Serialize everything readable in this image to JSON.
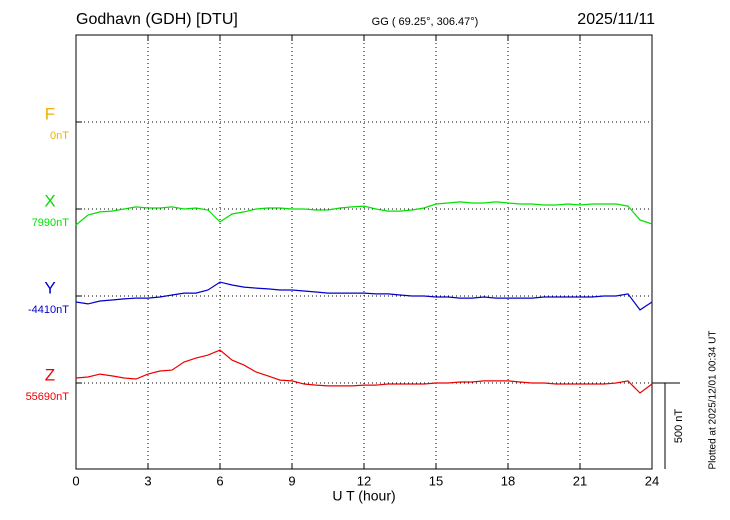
{
  "chart_data": {
    "type": "line",
    "title": "Godhavn (GDH)  [DTU]",
    "subtitle": "GG ( 69.25°, 306.47°)",
    "date": "2025/11/11",
    "x_label": "U T (hour)",
    "side_note": "Plotted at 2025/12/01 00:34 UT",
    "scale": {
      "value": 500,
      "label": "500 nT"
    },
    "xlim": [
      0,
      24
    ],
    "xticks": [
      0,
      3,
      6,
      9,
      12,
      15,
      18,
      21,
      24
    ],
    "grid": true,
    "x": [
      0,
      0.5,
      1,
      1.5,
      2,
      2.5,
      3,
      3.5,
      4,
      4.5,
      5,
      5.5,
      6,
      6.5,
      7,
      7.5,
      8,
      8.5,
      9,
      9.5,
      10,
      10.5,
      11,
      11.5,
      12,
      12.5,
      13,
      13.5,
      14,
      14.5,
      15,
      15.5,
      16,
      16.5,
      17,
      17.5,
      18,
      18.5,
      19,
      19.5,
      20,
      20.5,
      21,
      21.5,
      22,
      22.5,
      23,
      23.5,
      24
    ],
    "series": [
      {
        "name": "F",
        "color": "#f0b000",
        "baseline": {
          "value": 0,
          "label": "0nT"
        },
        "values": [
          null,
          null,
          null,
          null,
          null,
          null,
          null,
          null,
          null,
          null,
          null,
          null,
          null,
          null,
          null,
          null,
          null,
          null,
          null,
          null,
          null,
          null,
          null,
          null,
          null,
          null,
          null,
          null,
          null,
          null,
          null,
          null,
          null,
          null,
          null,
          null,
          null,
          null,
          null,
          null,
          null,
          null,
          null,
          null,
          null,
          null,
          null,
          null,
          null
        ]
      },
      {
        "name": "X",
        "color": "#00e000",
        "baseline": {
          "value": 7990,
          "label": "7990nT"
        },
        "values": [
          7897,
          7955,
          7973,
          7978,
          7990,
          8002,
          7996,
          7996,
          8002,
          7990,
          7996,
          7984,
          7915,
          7961,
          7973,
          7990,
          7996,
          7996,
          7990,
          7990,
          7984,
          7984,
          7996,
          8002,
          8007,
          7990,
          7978,
          7978,
          7984,
          7996,
          8019,
          8025,
          8031,
          8025,
          8025,
          8031,
          8025,
          8019,
          8019,
          8013,
          8013,
          8019,
          8013,
          8019,
          8019,
          8019,
          8007,
          7926,
          7903
        ]
      },
      {
        "name": "Y",
        "color": "#0000cc",
        "baseline": {
          "value": -4410,
          "label": "-4410nT"
        },
        "values": [
          -4445,
          -4456,
          -4439,
          -4433,
          -4427,
          -4422,
          -4422,
          -4416,
          -4404,
          -4393,
          -4393,
          -4375,
          -4329,
          -4346,
          -4358,
          -4364,
          -4369,
          -4375,
          -4375,
          -4381,
          -4387,
          -4393,
          -4393,
          -4393,
          -4393,
          -4398,
          -4398,
          -4404,
          -4410,
          -4410,
          -4416,
          -4416,
          -4422,
          -4422,
          -4416,
          -4422,
          -4422,
          -4422,
          -4422,
          -4416,
          -4416,
          -4416,
          -4416,
          -4416,
          -4410,
          -4410,
          -4398,
          -4491,
          -4445
        ]
      },
      {
        "name": "Z",
        "color": "#ee0000",
        "baseline": {
          "value": 55690,
          "label": "55690nT"
        },
        "values": [
          55719,
          55725,
          55742,
          55731,
          55719,
          55713,
          55742,
          55760,
          55765,
          55812,
          55835,
          55852,
          55881,
          55823,
          55794,
          55754,
          55731,
          55707,
          55702,
          55684,
          55678,
          55673,
          55673,
          55673,
          55678,
          55678,
          55684,
          55684,
          55684,
          55684,
          55690,
          55690,
          55696,
          55696,
          55702,
          55702,
          55702,
          55696,
          55690,
          55690,
          55684,
          55684,
          55684,
          55684,
          55684,
          55690,
          55702,
          55632,
          55684
        ]
      }
    ]
  }
}
